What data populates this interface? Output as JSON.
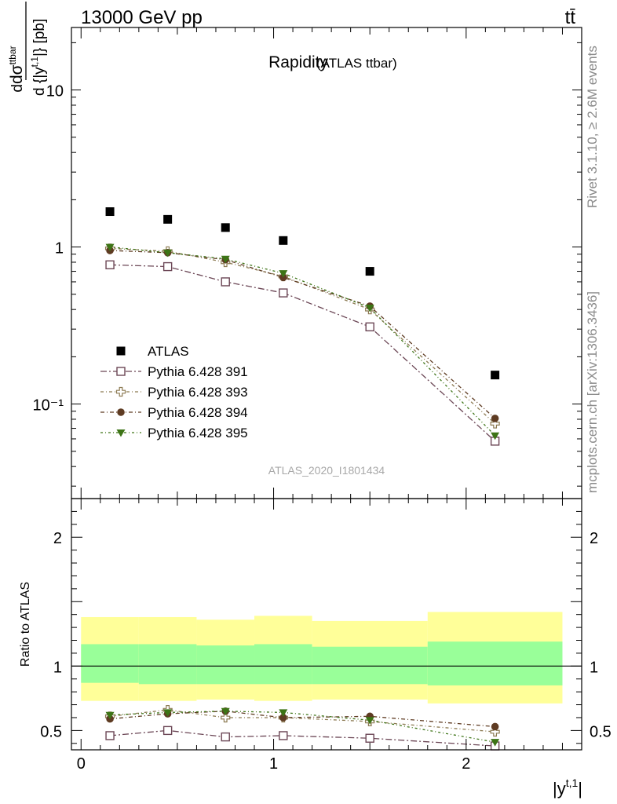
{
  "header": {
    "left": "13000 GeV pp",
    "right": "tt̄"
  },
  "side_labels": {
    "rivet": "Rivet 3.1.10, ≥ 2.6M events",
    "mcplots": "mcplots.cern.ch [arXiv:1306.3436]"
  },
  "chart_data": [
    {
      "type": "scatter",
      "panel": "main",
      "title": "Rapidity",
      "subtitle": "(ATLAS ttbar)",
      "watermark": "ATLAS_2020_I1801434",
      "ylabel": "dσ^tt / d{|y^t,1|} [pb]",
      "yscale": "log",
      "ylim": [
        0.025,
        25
      ],
      "xlim": [
        -0.05,
        2.6
      ],
      "yticks": [
        {
          "v": 0.1,
          "label": "10⁻¹"
        },
        {
          "v": 1,
          "label": "1"
        },
        {
          "v": 10,
          "label": "10"
        }
      ],
      "legend_position": "bottom-left",
      "bins": [
        [
          0,
          0.3
        ],
        [
          0.3,
          0.6
        ],
        [
          0.6,
          0.9
        ],
        [
          0.9,
          1.2
        ],
        [
          1.2,
          1.8
        ],
        [
          1.8,
          2.5
        ]
      ],
      "x": [
        0.15,
        0.45,
        0.75,
        1.05,
        1.5,
        2.15
      ],
      "series": [
        {
          "name": "ATLAS",
          "color": "#000000",
          "marker": "square-filled",
          "values": [
            1.68,
            1.5,
            1.33,
            1.1,
            0.7,
            0.153
          ]
        },
        {
          "name": "Pythia 6.428 391",
          "color": "#6b4655",
          "marker": "square-open",
          "values": [
            0.77,
            0.75,
            0.6,
            0.51,
            0.31,
            0.058
          ]
        },
        {
          "name": "Pythia 6.428 393",
          "color": "#8c7a52",
          "marker": "cross-open",
          "values": [
            0.98,
            0.94,
            0.8,
            0.65,
            0.4,
            0.075
          ]
        },
        {
          "name": "Pythia 6.428 394",
          "color": "#5e3b22",
          "marker": "circle-filled",
          "values": [
            0.95,
            0.92,
            0.83,
            0.64,
            0.42,
            0.081
          ]
        },
        {
          "name": "Pythia 6.428 395",
          "color": "#3d7416",
          "marker": "triangle-down-filled",
          "values": [
            1.0,
            0.92,
            0.84,
            0.68,
            0.41,
            0.063
          ]
        }
      ]
    },
    {
      "type": "scatter",
      "panel": "ratio",
      "ylabel": "Ratio to ATLAS",
      "xlabel": "|y^t,1|",
      "ylim": [
        0.35,
        2.3
      ],
      "xlim": [
        -0.05,
        2.6
      ],
      "yticks": [
        {
          "v": 0.5,
          "label": "0.5"
        },
        {
          "v": 1,
          "label": "1"
        },
        {
          "v": 2,
          "label": "2"
        }
      ],
      "xticks": [
        {
          "v": 0,
          "label": "0"
        },
        {
          "v": 1,
          "label": "1"
        },
        {
          "v": 2,
          "label": "2"
        }
      ],
      "bands": {
        "total_color": "#ffff99",
        "stat_color": "#99ff99",
        "total": [
          [
            0.73,
            1.38
          ],
          [
            0.73,
            1.38
          ],
          [
            0.74,
            1.36
          ],
          [
            0.73,
            1.39
          ],
          [
            0.74,
            1.35
          ],
          [
            0.71,
            1.42
          ]
        ],
        "stat": [
          [
            0.87,
            1.17
          ],
          [
            0.86,
            1.17
          ],
          [
            0.86,
            1.16
          ],
          [
            0.86,
            1.17
          ],
          [
            0.86,
            1.15
          ],
          [
            0.85,
            1.19
          ]
        ]
      },
      "x": [
        0.15,
        0.45,
        0.75,
        1.05,
        1.5,
        2.15
      ],
      "series": [
        {
          "name": "Pythia 6.428 391",
          "color": "#6b4655",
          "marker": "square-open",
          "values": [
            0.46,
            0.5,
            0.45,
            0.46,
            0.44,
            0.38
          ]
        },
        {
          "name": "Pythia 6.428 393",
          "color": "#8c7a52",
          "marker": "cross-open",
          "values": [
            0.61,
            0.66,
            0.6,
            0.6,
            0.57,
            0.49
          ]
        },
        {
          "name": "Pythia 6.428 394",
          "color": "#5e3b22",
          "marker": "circle-filled",
          "values": [
            0.59,
            0.63,
            0.65,
            0.6,
            0.61,
            0.53
          ]
        },
        {
          "name": "Pythia 6.428 395",
          "color": "#3d7416",
          "marker": "triangle-down-filled",
          "values": [
            0.62,
            0.64,
            0.65,
            0.64,
            0.58,
            0.41
          ]
        }
      ]
    }
  ]
}
